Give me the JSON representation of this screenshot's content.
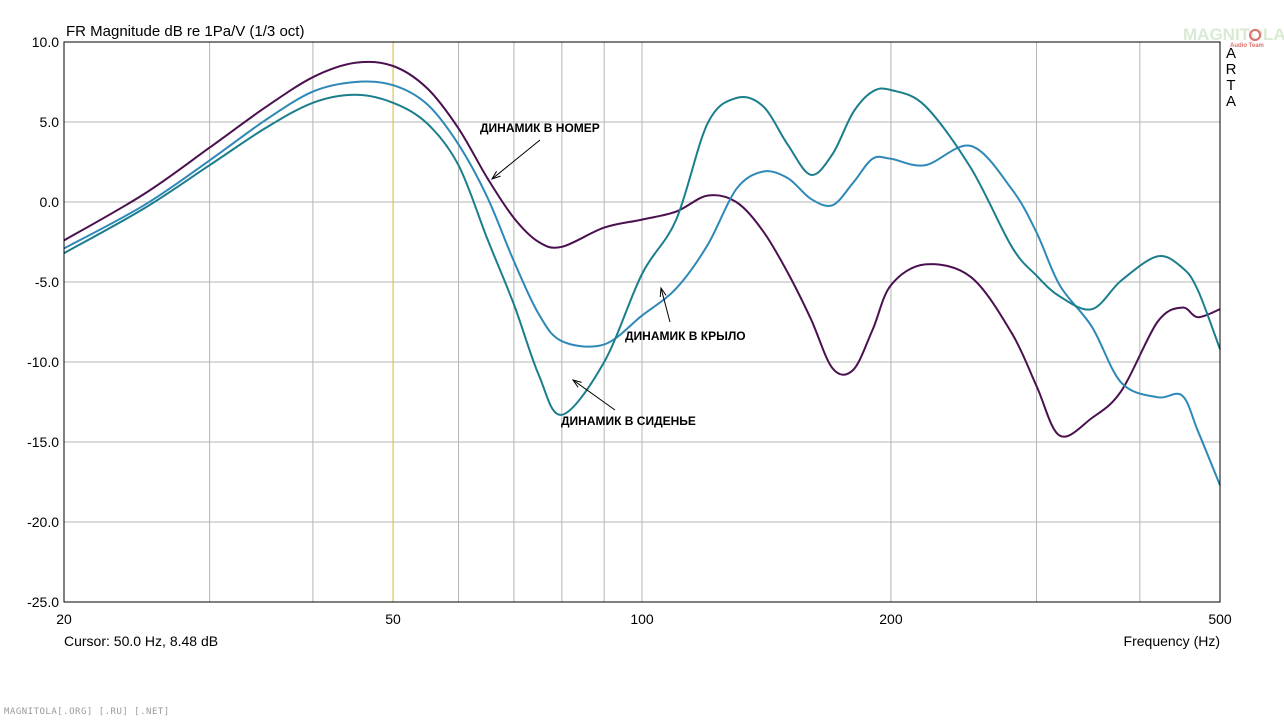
{
  "chart_data": {
    "type": "line",
    "title": "FR Magnitude dB re 1Pa/V (1/3 oct)",
    "xlabel": "Frequency (Hz)",
    "x_scale": "log",
    "xlim": [
      20,
      500
    ],
    "ylim": [
      -25,
      10
    ],
    "grid": true,
    "x_major_ticks": [
      20,
      50,
      100,
      200,
      500
    ],
    "x_minor_ticks": [
      30,
      40,
      60,
      70,
      80,
      90,
      300,
      400
    ],
    "y_ticks": [
      10,
      5,
      0,
      -5,
      -10,
      -15,
      -20,
      -25
    ],
    "y_tick_labels": [
      "10.0",
      "5.0",
      "0.0",
      "-5.0",
      "-10.0",
      "-15.0",
      "-20.0",
      "-25.0"
    ],
    "cursor": {
      "x": 50,
      "label": "Cursor: 50.0 Hz, 8.48 dB",
      "color": "#e8c060"
    },
    "series": [
      {
        "label": "ДИНАМИК В НОМЕР",
        "color": "#4a1050",
        "x": [
          20,
          25,
          30,
          35,
          40,
          45,
          50,
          55,
          60,
          65,
          70,
          75,
          80,
          90,
          100,
          110,
          120,
          130,
          140,
          150,
          160,
          170,
          180,
          190,
          200,
          220,
          250,
          280,
          300,
          320,
          350,
          380,
          420,
          450,
          470,
          500
        ],
        "y": [
          -2.4,
          0.5,
          3.4,
          5.9,
          7.8,
          8.7,
          8.5,
          7.1,
          4.6,
          1.5,
          -1.0,
          -2.5,
          -2.8,
          -1.6,
          -1.1,
          -0.6,
          0.4,
          0.0,
          -1.8,
          -4.4,
          -7.3,
          -10.4,
          -10.5,
          -8.0,
          -5.2,
          -3.9,
          -4.7,
          -8.2,
          -11.5,
          -14.6,
          -13.5,
          -11.8,
          -7.5,
          -6.6,
          -7.2,
          -6.7
        ]
      },
      {
        "label": "ДИНАМИК В КРЫЛО",
        "color": "#2e88b8",
        "x": [
          20,
          25,
          30,
          35,
          40,
          45,
          50,
          55,
          60,
          65,
          70,
          75,
          80,
          90,
          100,
          110,
          120,
          130,
          140,
          150,
          160,
          170,
          180,
          190,
          200,
          220,
          250,
          280,
          300,
          320,
          350,
          380,
          420,
          450,
          470,
          500
        ],
        "y": [
          -2.9,
          -0.2,
          2.6,
          5.1,
          6.9,
          7.5,
          7.3,
          6.1,
          3.6,
          0.3,
          -3.7,
          -7.0,
          -8.7,
          -8.9,
          -7.1,
          -5.4,
          -2.7,
          0.8,
          1.9,
          1.5,
          0.2,
          -0.2,
          1.2,
          2.7,
          2.7,
          2.3,
          3.5,
          0.8,
          -1.9,
          -5.2,
          -7.8,
          -11.3,
          -12.2,
          -12.1,
          -14.3,
          -17.7
        ]
      },
      {
        "label": "ДИНАМИК В СИДЕНЬЕ",
        "color": "#1a7e8c",
        "x": [
          20,
          25,
          30,
          35,
          40,
          45,
          50,
          55,
          60,
          65,
          70,
          75,
          80,
          90,
          100,
          110,
          120,
          130,
          140,
          150,
          160,
          170,
          180,
          190,
          200,
          220,
          250,
          280,
          300,
          320,
          350,
          380,
          420,
          450,
          470,
          500
        ],
        "y": [
          -3.2,
          -0.4,
          2.3,
          4.6,
          6.2,
          6.7,
          6.2,
          4.9,
          2.3,
          -2.3,
          -6.4,
          -10.8,
          -13.3,
          -10.0,
          -4.5,
          -1.1,
          4.9,
          6.5,
          6.0,
          3.6,
          1.7,
          3.0,
          5.6,
          6.9,
          7.0,
          6.0,
          2.1,
          -2.8,
          -4.6,
          -5.9,
          -6.7,
          -4.9,
          -3.4,
          -4.1,
          -5.5,
          -9.2
        ]
      }
    ],
    "annotations": [
      {
        "text": "ДИНАМИК В НОМЕР",
        "series": 0
      },
      {
        "text": "ДИНАМИК В КРЫЛО",
        "series": 1
      },
      {
        "text": "ДИНАМИК В СИДЕНЬЕ",
        "series": 2
      }
    ]
  },
  "side_label": [
    "A",
    "R",
    "T",
    "A"
  ],
  "watermark": {
    "text": "MAGNITOLA",
    "subtext": "Audio Team"
  },
  "footer": "MAGNITOLA[.ORG] [.RU] [.NET]"
}
